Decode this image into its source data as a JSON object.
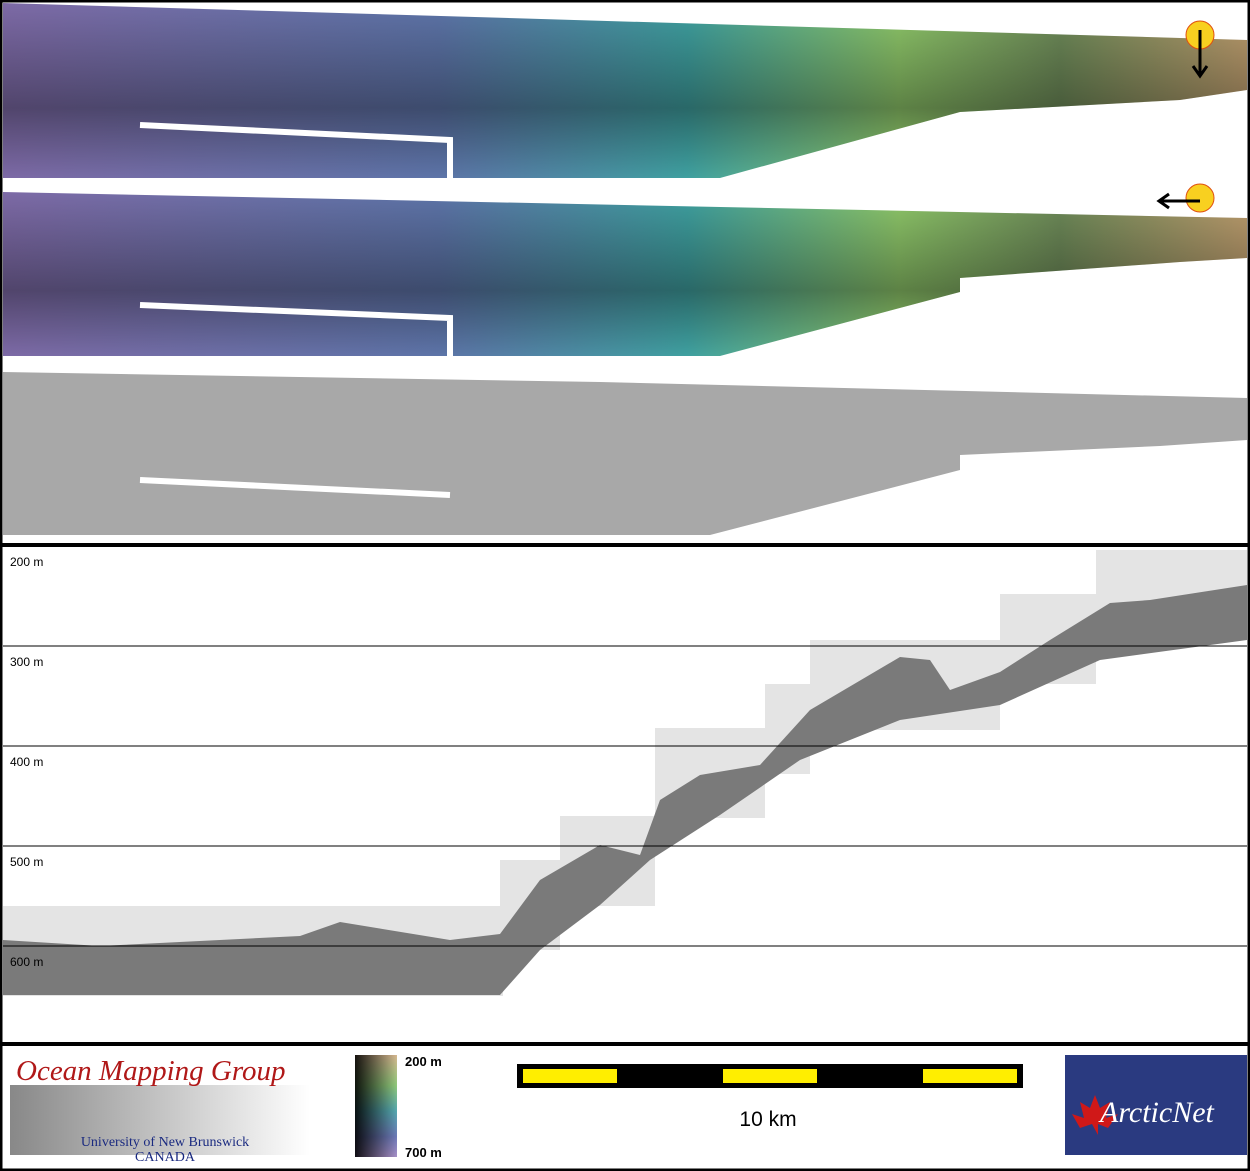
{
  "profile": {
    "depth_labels": [
      "200 m",
      "300 m",
      "400 m",
      "500 m",
      "600 m"
    ]
  },
  "legend": {
    "colorbar": {
      "top": "200 m",
      "bottom": "700 m"
    },
    "scale": "10 km"
  },
  "logos": {
    "omg": {
      "title": "Ocean Mapping Group",
      "line1": "University of New Brunswick",
      "line2": "CANADA"
    },
    "arcticnet": "ArcticNet"
  }
}
